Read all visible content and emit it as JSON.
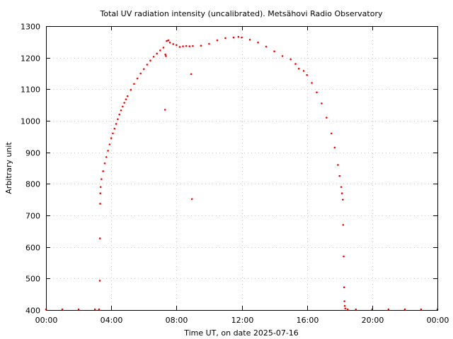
{
  "chart_data": {
    "type": "scatter",
    "title": "Total UV radiation intensity (uncalibrated). Metsähovi Radio Observatory",
    "xlabel": "Time UT, on date 2025-07-16",
    "ylabel": "Arbitrary unit",
    "xlim": [
      0,
      24
    ],
    "ylim": [
      400,
      1300
    ],
    "x_ticks": [
      {
        "value": 0,
        "label": "00:00"
      },
      {
        "value": 4,
        "label": "04:00"
      },
      {
        "value": 8,
        "label": "08:00"
      },
      {
        "value": 12,
        "label": "12:00"
      },
      {
        "value": 16,
        "label": "16:00"
      },
      {
        "value": 20,
        "label": "20:00"
      },
      {
        "value": 24,
        "label": "00:00"
      }
    ],
    "y_ticks": [
      {
        "value": 400,
        "label": "400"
      },
      {
        "value": 500,
        "label": "500"
      },
      {
        "value": 600,
        "label": "600"
      },
      {
        "value": 700,
        "label": "700"
      },
      {
        "value": 800,
        "label": "800"
      },
      {
        "value": 900,
        "label": "900"
      },
      {
        "value": 1000,
        "label": "1000"
      },
      {
        "value": 1100,
        "label": "1100"
      },
      {
        "value": 1200,
        "label": "1200"
      },
      {
        "value": 1300,
        "label": "1300"
      }
    ],
    "grid": true,
    "marker_color": "#ff0000",
    "series": [
      {
        "values": [
          [
            0.0,
            402
          ],
          [
            1.0,
            402
          ],
          [
            2.0,
            402
          ],
          [
            3.0,
            402
          ],
          [
            3.25,
            402
          ],
          [
            3.3,
            493
          ],
          [
            3.31,
            627
          ],
          [
            3.32,
            737
          ],
          [
            3.33,
            770
          ],
          [
            3.35,
            790
          ],
          [
            3.4,
            815
          ],
          [
            3.5,
            840
          ],
          [
            3.6,
            865
          ],
          [
            3.7,
            885
          ],
          [
            3.8,
            905
          ],
          [
            3.9,
            925
          ],
          [
            4.0,
            945
          ],
          [
            4.1,
            960
          ],
          [
            4.2,
            975
          ],
          [
            4.3,
            990
          ],
          [
            4.4,
            1005
          ],
          [
            4.5,
            1020
          ],
          [
            4.6,
            1033
          ],
          [
            4.7,
            1045
          ],
          [
            4.8,
            1057
          ],
          [
            4.9,
            1068
          ],
          [
            5.0,
            1078
          ],
          [
            5.2,
            1098
          ],
          [
            5.4,
            1117
          ],
          [
            5.6,
            1134
          ],
          [
            5.8,
            1150
          ],
          [
            6.0,
            1164
          ],
          [
            6.2,
            1178
          ],
          [
            6.4,
            1191
          ],
          [
            6.6,
            1203
          ],
          [
            6.8,
            1213
          ],
          [
            7.0,
            1223
          ],
          [
            7.2,
            1232
          ],
          [
            7.3,
            1035
          ],
          [
            7.32,
            1210
          ],
          [
            7.35,
            1205
          ],
          [
            7.4,
            1253
          ],
          [
            7.5,
            1255
          ],
          [
            7.6,
            1248
          ],
          [
            7.8,
            1243
          ],
          [
            8.0,
            1240
          ],
          [
            8.2,
            1234
          ],
          [
            8.4,
            1236
          ],
          [
            8.6,
            1237
          ],
          [
            8.8,
            1236
          ],
          [
            8.9,
            1148
          ],
          [
            8.95,
            752
          ],
          [
            9.0,
            1237
          ],
          [
            9.5,
            1238
          ],
          [
            10.0,
            1244
          ],
          [
            10.5,
            1255
          ],
          [
            11.0,
            1262
          ],
          [
            11.5,
            1264
          ],
          [
            11.8,
            1266
          ],
          [
            12.0,
            1264
          ],
          [
            12.5,
            1257
          ],
          [
            13.0,
            1248
          ],
          [
            13.5,
            1235
          ],
          [
            14.0,
            1220
          ],
          [
            14.5,
            1205
          ],
          [
            15.0,
            1195
          ],
          [
            15.3,
            1180
          ],
          [
            15.5,
            1165
          ],
          [
            15.8,
            1158
          ],
          [
            16.0,
            1145
          ],
          [
            16.3,
            1120
          ],
          [
            16.6,
            1090
          ],
          [
            16.9,
            1055
          ],
          [
            17.2,
            1010
          ],
          [
            17.5,
            960
          ],
          [
            17.7,
            915
          ],
          [
            17.9,
            860
          ],
          [
            18.0,
            825
          ],
          [
            18.1,
            790
          ],
          [
            18.15,
            770
          ],
          [
            18.2,
            750
          ],
          [
            18.22,
            670
          ],
          [
            18.25,
            570
          ],
          [
            18.28,
            472
          ],
          [
            18.3,
            428
          ],
          [
            18.32,
            413
          ],
          [
            18.35,
            405
          ],
          [
            18.5,
            402
          ],
          [
            19.0,
            402
          ],
          [
            20.0,
            402
          ],
          [
            21.0,
            402
          ],
          [
            22.0,
            402
          ],
          [
            23.0,
            402
          ],
          [
            24.0,
            402
          ]
        ]
      }
    ]
  }
}
